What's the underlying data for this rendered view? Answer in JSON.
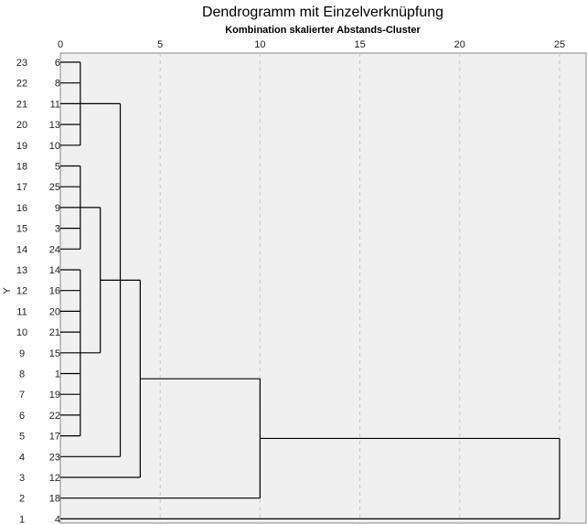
{
  "chart_data": {
    "type": "dendrogram",
    "title": "Dendrogramm mit Einzelverknüpfung",
    "subtitle": "Kombination skalierter Abstands-Cluster",
    "ylabel": "Y",
    "x_ticks": [
      0,
      5,
      10,
      15,
      20,
      25
    ],
    "xlim": [
      0,
      25
    ],
    "grid": "vertical dashed",
    "row_numbers": [
      23,
      22,
      21,
      20,
      19,
      18,
      17,
      16,
      15,
      14,
      13,
      12,
      11,
      10,
      9,
      8,
      7,
      6,
      5,
      4,
      3,
      2,
      1
    ],
    "leaves": [
      "6",
      "8",
      "11",
      "13",
      "10",
      "5",
      "25",
      "9",
      "3",
      "24",
      "14",
      "16",
      "20",
      "21",
      "15",
      "1",
      "19",
      "22",
      "17",
      "23",
      "12",
      "18",
      "4"
    ],
    "merges": [
      {
        "members": [
          "6",
          "8",
          "11",
          "13",
          "10"
        ],
        "distance": 1
      },
      {
        "members": [
          "5",
          "25",
          "9",
          "3",
          "24"
        ],
        "distance": 1
      },
      {
        "members": [
          "14",
          "16",
          "20",
          "21",
          "15",
          "1",
          "19",
          "22",
          "17"
        ],
        "distance": 1
      },
      {
        "members": [
          "5",
          "25",
          "9",
          "3",
          "24",
          "14",
          "16",
          "20",
          "21",
          "15",
          "1",
          "19",
          "22",
          "17"
        ],
        "distance": 2
      },
      {
        "members": [
          "6",
          "8",
          "11",
          "13",
          "10",
          "5",
          "25",
          "9",
          "3",
          "24",
          "14",
          "16",
          "20",
          "21",
          "15",
          "1",
          "19",
          "22",
          "17",
          "23"
        ],
        "distance": 3
      },
      {
        "members": [
          "6",
          "8",
          "11",
          "13",
          "10",
          "5",
          "25",
          "9",
          "3",
          "24",
          "14",
          "16",
          "20",
          "21",
          "15",
          "1",
          "19",
          "22",
          "17",
          "23",
          "12"
        ],
        "distance": 4
      },
      {
        "members": [
          "6",
          "8",
          "11",
          "13",
          "10",
          "5",
          "25",
          "9",
          "3",
          "24",
          "14",
          "16",
          "20",
          "21",
          "15",
          "1",
          "19",
          "22",
          "17",
          "23",
          "12",
          "18"
        ],
        "distance": 10
      },
      {
        "members": [
          "6",
          "8",
          "11",
          "13",
          "10",
          "5",
          "25",
          "9",
          "3",
          "24",
          "14",
          "16",
          "20",
          "21",
          "15",
          "1",
          "19",
          "22",
          "17",
          "23",
          "12",
          "18",
          "4"
        ],
        "distance": 25
      }
    ]
  }
}
